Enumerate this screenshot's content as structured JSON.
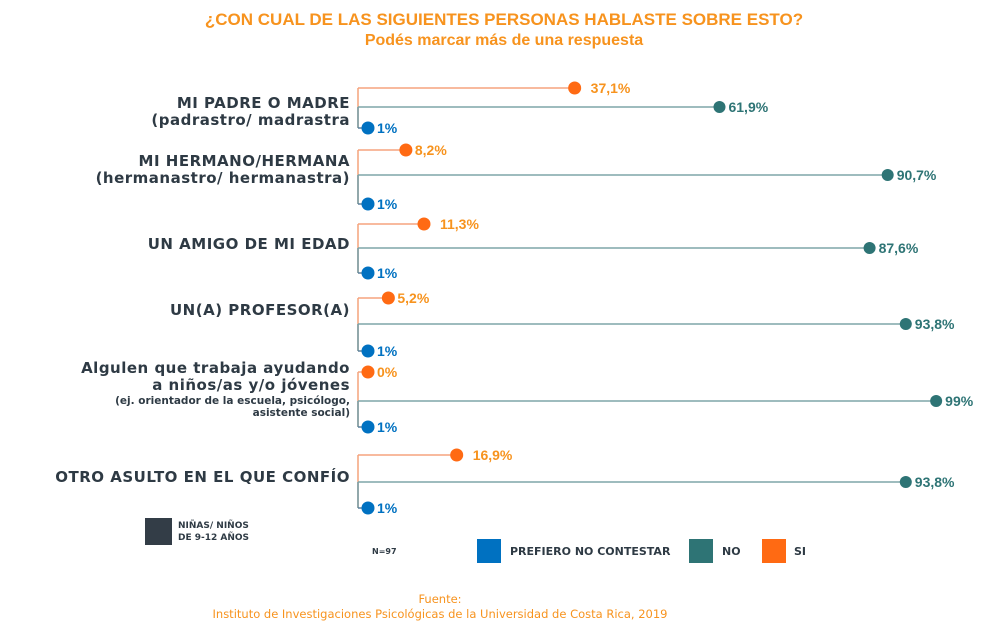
{
  "header": {
    "title": "¿CON CUAL DE LAS SIGUIENTES PERSONAS HABLASTE SOBRE ESTO?",
    "subtitle": "Podés marcar más de una respuesta"
  },
  "chart_data": {
    "type": "dot-line",
    "title": "¿CON CUAL DE LAS SIGUIENTES PERSONAS HABLASTE SOBRE ESTO?",
    "subtitle": "Podés marcar más de una respuesta",
    "xlabel": "",
    "ylabel": "",
    "xlim": [
      0,
      100
    ],
    "unit": "%",
    "grid": false,
    "legend_position": "bottom",
    "categories": [
      {
        "lines": [
          "MI PADRE O MADRE",
          "(padrastro/ madrastra"
        ],
        "small": []
      },
      {
        "lines": [
          "MI HERMANO/HERMANA",
          "(hermanastro/ hermanastra)"
        ],
        "small": []
      },
      {
        "lines": [
          "UN AMIGO DE MI EDAD"
        ],
        "small": []
      },
      {
        "lines": [
          "UN(A) PROFESOR(A)"
        ],
        "small": []
      },
      {
        "lines": [
          "Algulen que trabaja ayudando",
          "a niños/as y/o jóvenes"
        ],
        "small": [
          "(ej. orientador de la escuela, psicólogo,",
          "asistente social)"
        ]
      },
      {
        "lines": [
          "OTRO ASULTO EN EL QUE CONFÍO"
        ],
        "small": []
      }
    ],
    "series": [
      {
        "name": "SI",
        "color": "#ff6a13",
        "label_color": "#f7931e",
        "values": [
          37.1,
          8.2,
          11.3,
          5.2,
          0,
          16.9
        ],
        "labels": [
          "37,1%",
          "8,2%",
          "11,3%",
          "5,2%",
          "0%",
          "16,9%"
        ]
      },
      {
        "name": "NO",
        "color": "#2e7475",
        "label_color": "#2e7475",
        "values": [
          61.9,
          90.7,
          87.6,
          93.8,
          99,
          93.8
        ],
        "labels": [
          "61,9%",
          "90,7%",
          "87,6%",
          "93,8%",
          "99%",
          "93,8%"
        ]
      },
      {
        "name": "PREFIERO NO CONTESTAR",
        "color": "#0071c1",
        "label_color": "#0071c1",
        "values": [
          1,
          1,
          1,
          1,
          1,
          1
        ],
        "labels": [
          "1%",
          "1%",
          "1%",
          "1%",
          "1%",
          "1%"
        ]
      }
    ]
  },
  "legend": {
    "group_label_line1": "NIÑAS/ NIÑOS",
    "group_label_line2": "DE 9-12 AÑOS",
    "group_color": "#333d47",
    "n_label": "N=97",
    "items": [
      {
        "label": "PREFIERO NO CONTESTAR",
        "color": "#0071c1"
      },
      {
        "label": "NO",
        "color": "#2e7475"
      },
      {
        "label": "SI",
        "color": "#ff6a13"
      }
    ]
  },
  "footer": {
    "source_label": "Fuente:",
    "source_text": "Instituto de Investigaciones Psicológicas de la Universidad de Costa Rica, 2019"
  }
}
